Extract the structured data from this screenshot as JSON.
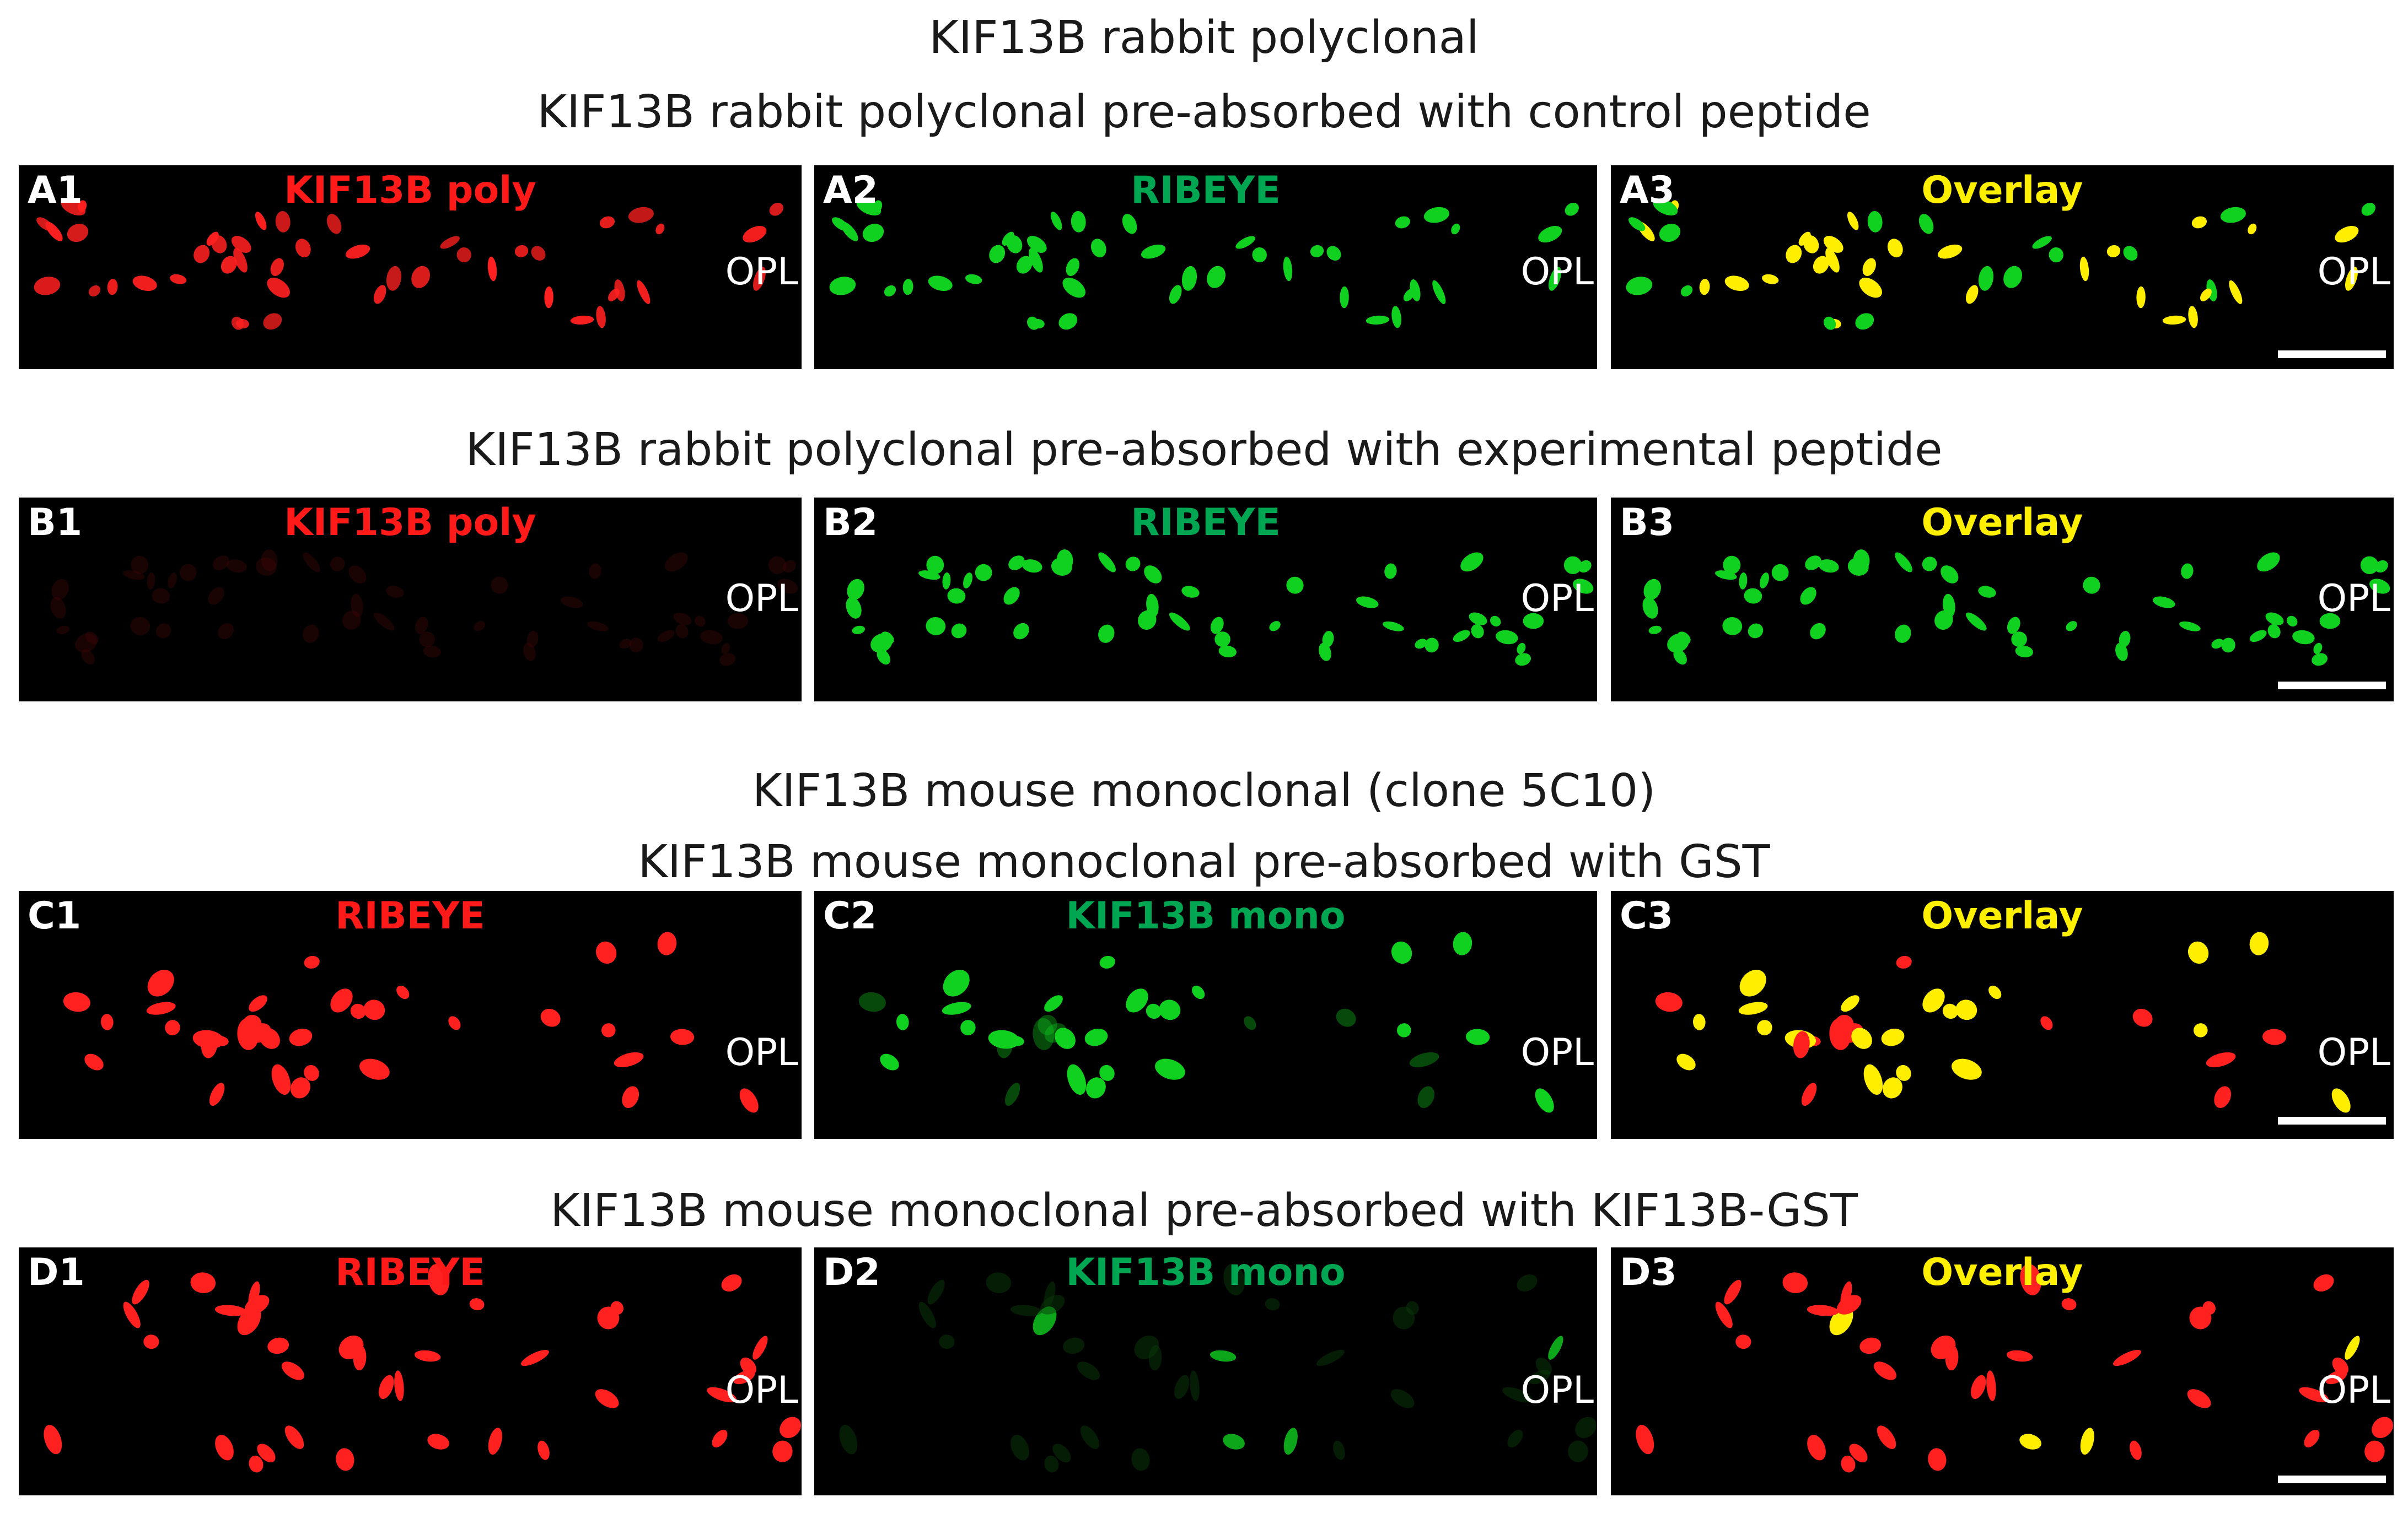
{
  "headings": {
    "h1": "KIF13B rabbit polyclonal",
    "h2": "KIF13B rabbit polyclonal pre-absorbed with control peptide",
    "h3": "KIF13B rabbit polyclonal pre-absorbed with experimental peptide",
    "h4": "KIF13B mouse monoclonal (clone 5C10)",
    "h5": "KIF13B mouse monoclonal pre-absorbed with GST",
    "h6": "KIF13B mouse monoclonal pre-absorbed with KIF13B-GST"
  },
  "colors": {
    "red": "#ff1f1f",
    "green": "#00c020",
    "yellow": "#ffef00",
    "text_green": "#00a651",
    "text_red": "#ff1a1a"
  },
  "rows": [
    {
      "panels": [
        {
          "label": "A1",
          "channel": "KIF13B poly",
          "channel_color": "red",
          "region": "OPL",
          "scalebar": false
        },
        {
          "label": "A2",
          "channel": "RIBEYE",
          "channel_color": "green",
          "region": "OPL",
          "scalebar": false
        },
        {
          "label": "A3",
          "channel": "Overlay",
          "channel_color": "yellow",
          "region": "OPL",
          "scalebar": true
        }
      ]
    },
    {
      "panels": [
        {
          "label": "B1",
          "channel": "KIF13B poly",
          "channel_color": "red",
          "region": "OPL",
          "scalebar": false
        },
        {
          "label": "B2",
          "channel": "RIBEYE",
          "channel_color": "green",
          "region": "OPL",
          "scalebar": false
        },
        {
          "label": "B3",
          "channel": "Overlay",
          "channel_color": "yellow",
          "region": "OPL",
          "scalebar": true
        }
      ]
    },
    {
      "panels": [
        {
          "label": "C1",
          "channel": "RIBEYE",
          "channel_color": "red",
          "region": "OPL",
          "scalebar": false
        },
        {
          "label": "C2",
          "channel": "KIF13B mono",
          "channel_color": "green",
          "region": "OPL",
          "scalebar": false
        },
        {
          "label": "C3",
          "channel": "Overlay",
          "channel_color": "yellow",
          "region": "OPL",
          "scalebar": true
        }
      ]
    },
    {
      "panels": [
        {
          "label": "D1",
          "channel": "RIBEYE",
          "channel_color": "red",
          "region": "OPL",
          "scalebar": false
        },
        {
          "label": "D2",
          "channel": "KIF13B mono",
          "channel_color": "green",
          "region": "OPL",
          "scalebar": false
        },
        {
          "label": "D3",
          "channel": "Overlay",
          "channel_color": "yellow",
          "region": "OPL",
          "scalebar": true
        }
      ]
    }
  ]
}
